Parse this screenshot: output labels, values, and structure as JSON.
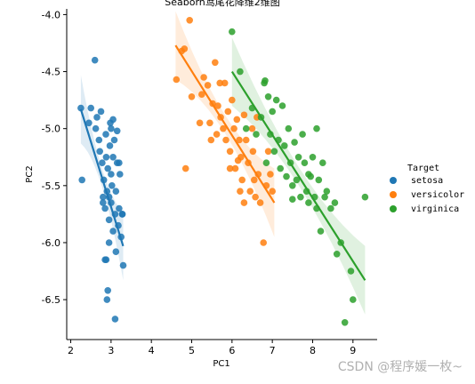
{
  "chart_data": {
    "type": "scatter",
    "title": "Seaborn鸢尾花降维2维图",
    "xlabel": "PC1",
    "ylabel": "PC2",
    "xlim": [
      1.9,
      9.6
    ],
    "ylim": [
      -6.85,
      -3.95
    ],
    "xticks": [
      2,
      3,
      4,
      5,
      6,
      7,
      8,
      9
    ],
    "yticks": [
      -6.5,
      -6.0,
      -5.5,
      -5.0,
      -4.5,
      -4.0
    ],
    "legend_title": "Target",
    "legend_position": "right",
    "series": [
      {
        "name": "setosa",
        "color": "#1f77b4",
        "regression": {
          "x": [
            2.25,
            3.3
          ],
          "y": [
            -4.83,
            -6.03
          ]
        },
        "points": [
          [
            2.25,
            -4.82
          ],
          [
            2.28,
            -5.45
          ],
          [
            2.45,
            -4.95
          ],
          [
            2.5,
            -4.82
          ],
          [
            2.6,
            -4.4
          ],
          [
            2.62,
            -5.0
          ],
          [
            2.65,
            -4.9
          ],
          [
            2.7,
            -5.1
          ],
          [
            2.72,
            -5.2
          ],
          [
            2.75,
            -4.85
          ],
          [
            2.78,
            -5.3
          ],
          [
            2.8,
            -5.6
          ],
          [
            2.82,
            -5.45
          ],
          [
            2.85,
            -5.7
          ],
          [
            2.87,
            -5.05
          ],
          [
            2.88,
            -5.25
          ],
          [
            2.9,
            -5.55
          ],
          [
            2.92,
            -5.35
          ],
          [
            2.95,
            -5.8
          ],
          [
            2.95,
            -6.0
          ],
          [
            2.97,
            -5.15
          ],
          [
            3.0,
            -5.0
          ],
          [
            3.0,
            -5.65
          ],
          [
            3.02,
            -5.5
          ],
          [
            3.05,
            -5.25
          ],
          [
            3.05,
            -5.9
          ],
          [
            3.08,
            -5.1
          ],
          [
            3.1,
            -5.75
          ],
          [
            3.12,
            -5.55
          ],
          [
            3.15,
            -5.3
          ],
          [
            3.18,
            -5.85
          ],
          [
            3.2,
            -5.7
          ],
          [
            3.22,
            -5.4
          ],
          [
            3.25,
            -5.95
          ],
          [
            3.28,
            -5.75
          ],
          [
            3.3,
            -6.2
          ],
          [
            2.85,
            -6.15
          ],
          [
            2.88,
            -6.15
          ],
          [
            2.92,
            -6.42
          ],
          [
            2.9,
            -6.5
          ],
          [
            3.1,
            -6.67
          ],
          [
            3.12,
            -6.08
          ],
          [
            2.8,
            -5.65
          ],
          [
            2.95,
            -5.6
          ],
          [
            3.0,
            -5.4
          ],
          [
            3.15,
            -5.02
          ],
          [
            2.98,
            -4.95
          ],
          [
            3.05,
            -4.92
          ],
          [
            3.2,
            -5.3
          ],
          [
            3.28,
            -5.75
          ]
        ]
      },
      {
        "name": "versicolor",
        "color": "#ff7f0e",
        "regression": {
          "x": [
            4.6,
            7.05
          ],
          "y": [
            -4.27,
            -5.65
          ]
        },
        "points": [
          [
            4.62,
            -4.57
          ],
          [
            4.75,
            -4.32
          ],
          [
            4.82,
            -4.3
          ],
          [
            4.85,
            -5.35
          ],
          [
            4.95,
            -4.05
          ],
          [
            5.0,
            -4.72
          ],
          [
            5.2,
            -4.95
          ],
          [
            5.25,
            -4.7
          ],
          [
            5.3,
            -4.55
          ],
          [
            5.4,
            -4.62
          ],
          [
            5.45,
            -4.95
          ],
          [
            5.48,
            -5.1
          ],
          [
            5.52,
            -4.78
          ],
          [
            5.58,
            -4.42
          ],
          [
            5.62,
            -5.05
          ],
          [
            5.65,
            -4.8
          ],
          [
            5.7,
            -4.6
          ],
          [
            5.72,
            -4.9
          ],
          [
            5.78,
            -5.0
          ],
          [
            5.82,
            -4.6
          ],
          [
            5.85,
            -5.1
          ],
          [
            5.9,
            -4.85
          ],
          [
            5.95,
            -5.2
          ],
          [
            6.0,
            -4.75
          ],
          [
            6.05,
            -5.0
          ],
          [
            6.08,
            -5.35
          ],
          [
            6.12,
            -4.92
          ],
          [
            6.18,
            -5.1
          ],
          [
            6.22,
            -5.25
          ],
          [
            6.25,
            -5.45
          ],
          [
            6.3,
            -4.88
          ],
          [
            6.35,
            -5.1
          ],
          [
            6.4,
            -5.3
          ],
          [
            6.45,
            -5.55
          ],
          [
            6.5,
            -5.0
          ],
          [
            6.52,
            -5.2
          ],
          [
            6.58,
            -5.6
          ],
          [
            6.62,
            -4.9
          ],
          [
            6.65,
            -5.4
          ],
          [
            6.7,
            -5.65
          ],
          [
            6.78,
            -6.0
          ],
          [
            6.85,
            -5.5
          ],
          [
            6.9,
            -5.2
          ],
          [
            6.95,
            -5.4
          ],
          [
            7.0,
            -5.55
          ],
          [
            6.2,
            -5.55
          ],
          [
            6.3,
            -5.65
          ],
          [
            6.15,
            -5.28
          ],
          [
            5.95,
            -5.35
          ],
          [
            6.55,
            -5.45
          ]
        ]
      },
      {
        "name": "virginica",
        "color": "#2ca02c",
        "regression": {
          "x": [
            6.0,
            9.3
          ],
          "y": [
            -4.5,
            -6.33
          ]
        },
        "points": [
          [
            6.0,
            -4.15
          ],
          [
            6.2,
            -4.5
          ],
          [
            6.35,
            -5.0
          ],
          [
            6.5,
            -4.82
          ],
          [
            6.6,
            -5.05
          ],
          [
            6.72,
            -4.9
          ],
          [
            6.8,
            -4.6
          ],
          [
            6.82,
            -4.58
          ],
          [
            6.85,
            -5.3
          ],
          [
            6.9,
            -4.72
          ],
          [
            6.95,
            -5.05
          ],
          [
            7.0,
            -4.85
          ],
          [
            7.05,
            -5.2
          ],
          [
            7.1,
            -4.75
          ],
          [
            7.15,
            -5.1
          ],
          [
            7.2,
            -5.35
          ],
          [
            7.25,
            -4.8
          ],
          [
            7.3,
            -5.15
          ],
          [
            7.35,
            -5.42
          ],
          [
            7.4,
            -5.0
          ],
          [
            7.45,
            -5.3
          ],
          [
            7.5,
            -5.5
          ],
          [
            7.55,
            -5.12
          ],
          [
            7.6,
            -5.45
          ],
          [
            7.65,
            -5.25
          ],
          [
            7.7,
            -5.6
          ],
          [
            7.75,
            -5.05
          ],
          [
            7.8,
            -5.3
          ],
          [
            7.85,
            -5.55
          ],
          [
            7.9,
            -5.65
          ],
          [
            7.95,
            -5.42
          ],
          [
            8.0,
            -5.25
          ],
          [
            8.05,
            -5.6
          ],
          [
            8.1,
            -5.7
          ],
          [
            8.15,
            -5.45
          ],
          [
            8.2,
            -5.9
          ],
          [
            8.25,
            -5.3
          ],
          [
            8.35,
            -5.55
          ],
          [
            8.45,
            -5.7
          ],
          [
            8.55,
            -5.65
          ],
          [
            8.6,
            -6.1
          ],
          [
            8.7,
            -6.0
          ],
          [
            8.8,
            -6.7
          ],
          [
            8.95,
            -6.25
          ],
          [
            9.0,
            -6.5
          ],
          [
            9.3,
            -5.6
          ],
          [
            8.1,
            -5.0
          ],
          [
            7.5,
            -5.62
          ],
          [
            8.3,
            -5.6
          ],
          [
            7.9,
            -5.4
          ]
        ]
      }
    ]
  },
  "watermark": "CSDN @程序媛一枚~"
}
